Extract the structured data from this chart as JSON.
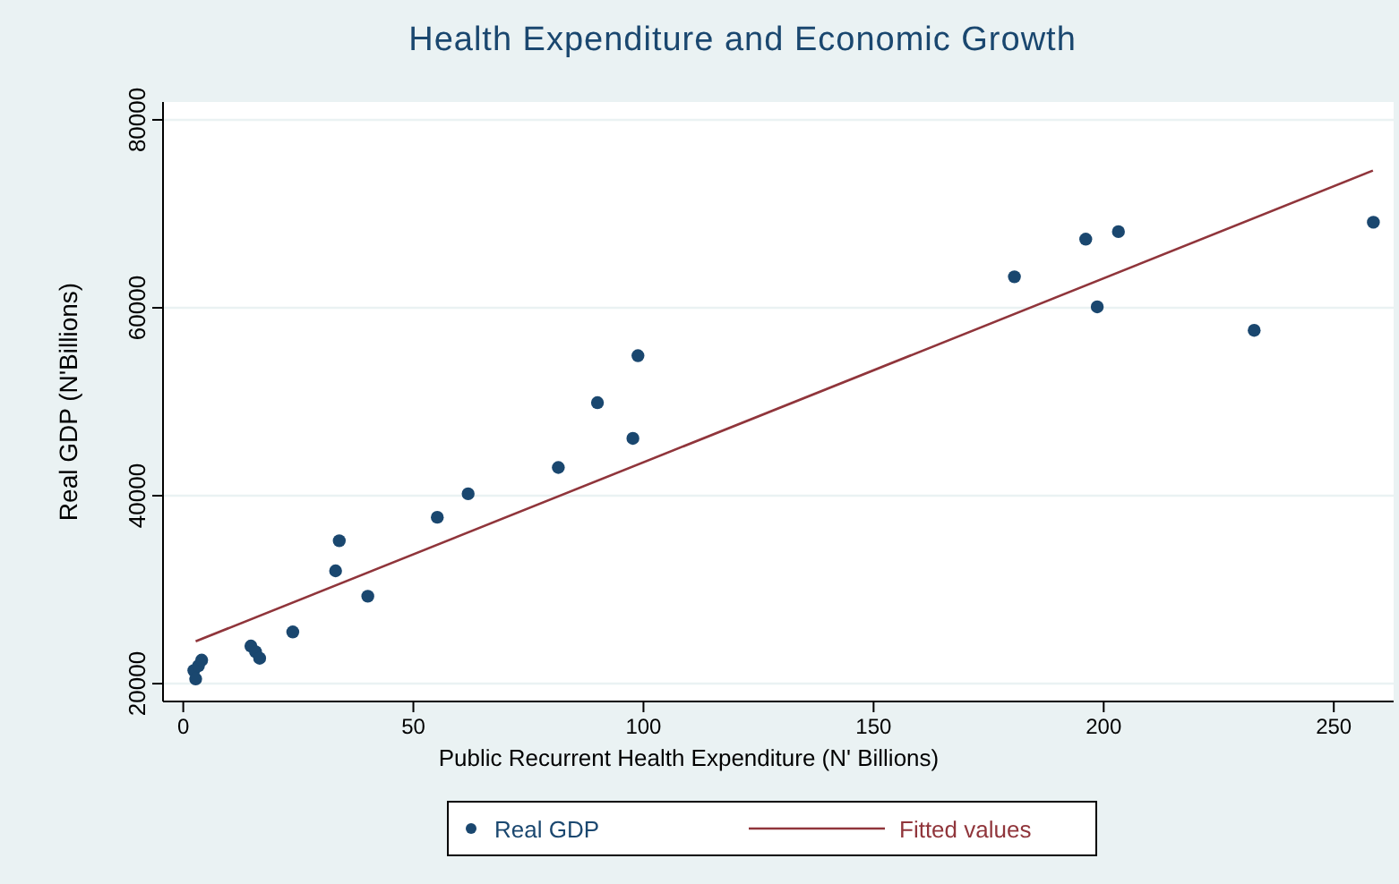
{
  "chart_data": {
    "type": "scatter",
    "title": "Health Expenditure and Economic Growth",
    "xlabel": "Public Recurrent Health Expenditure (N' Billions)",
    "ylabel": "Real GDP (N'Billions)",
    "xlim": [
      -4.4,
      263
    ],
    "ylim": [
      18100,
      81900
    ],
    "xticks": [
      0,
      50,
      100,
      150,
      200,
      250
    ],
    "yticks": [
      20000,
      40000,
      60000,
      80000
    ],
    "grid": "y",
    "legend": "bottom",
    "marker": "circle",
    "series": [
      {
        "name": "Real  GDP",
        "color": "#1a476f",
        "x": [
          2.3,
          2.7,
          3.3,
          4.0,
          14.7,
          15.7,
          16.6,
          23.8,
          33.1,
          33.9,
          40.1,
          55.2,
          61.9,
          81.5,
          90.0,
          97.7,
          98.8,
          180.6,
          196.1,
          198.6,
          203.2,
          232.7,
          258.6
        ],
        "values": [
          21400,
          20500,
          21900,
          22500,
          24000,
          23400,
          22700,
          25500,
          32000,
          35200,
          29300,
          37700,
          40200,
          43000,
          49900,
          46100,
          54900,
          63300,
          67300,
          60100,
          68100,
          57600,
          69100
        ]
      },
      {
        "name": "Fitted values",
        "type": "line",
        "color": "#90353b",
        "marker": "none",
        "x": [
          2.7,
          258.5
        ],
        "values": [
          24500,
          74600
        ]
      }
    ]
  }
}
